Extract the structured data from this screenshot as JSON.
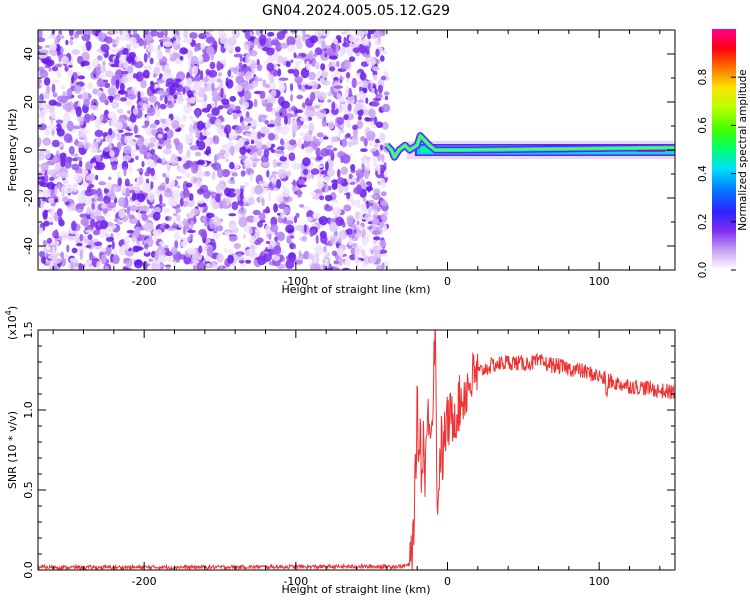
{
  "figure": {
    "title": "GN04.2024.005.05.12.G29"
  },
  "colors": {
    "snr_line": "#ee3333",
    "axis": "#000000",
    "background": "#ffffff",
    "colormap": [
      "#ffffff",
      "#d8b8f6",
      "#9a4cf0",
      "#6a1ff0",
      "#2040ff",
      "#00c8ff",
      "#00ff80",
      "#60ff00",
      "#ffff00",
      "#ff8000",
      "#ff0000",
      "#ff00a0"
    ]
  },
  "chart_data": [
    {
      "type": "heatmap",
      "name": "spectrogram",
      "xlabel": "Height of straight line (km)",
      "ylabel": "Frequency (Hz)",
      "xlim": [
        -270,
        150
      ],
      "ylim": [
        -50,
        50
      ],
      "xticks": [
        -200,
        -100,
        0,
        100
      ],
      "xtick_labels": [
        "-200",
        "-100",
        "0",
        "100"
      ],
      "yticks": [
        -40,
        -20,
        0,
        20,
        40
      ],
      "ytick_labels": [
        "-40",
        "-20",
        "0",
        "20",
        "40"
      ],
      "noise_region_x": [
        -270,
        -40
      ],
      "signal_band_x": [
        -40,
        150
      ],
      "signal_band_center_hz": 0,
      "signal_trace": [
        [
          -40,
          2
        ],
        [
          -37,
          0
        ],
        [
          -35,
          -3
        ],
        [
          -32,
          0
        ],
        [
          -28,
          2
        ],
        [
          -25,
          0
        ],
        [
          -20,
          2
        ],
        [
          -18,
          6
        ],
        [
          -15,
          4
        ],
        [
          -12,
          2
        ],
        [
          -8,
          0
        ],
        [
          10,
          0
        ],
        [
          150,
          1
        ]
      ],
      "colorbar": {
        "label": "Normalized spectral amplitude",
        "range": [
          0,
          1
        ],
        "ticks": [
          0.0,
          0.2,
          0.4,
          0.6,
          0.8
        ],
        "tick_labels": [
          "0.0",
          "0.2",
          "0.4",
          "0.6",
          "0.8"
        ]
      }
    },
    {
      "type": "line",
      "name": "snr",
      "xlabel": "Height of straight line (km)",
      "ylabel": "SNR (10 * v/v)",
      "scale_label": "(x10",
      "scale_exponent": "4",
      "xlim": [
        -270,
        150
      ],
      "ylim": [
        0,
        15000
      ],
      "xticks": [
        -200,
        -100,
        0,
        100
      ],
      "xtick_labels": [
        "-200",
        "-100",
        "0",
        "100"
      ],
      "yticks": [
        0,
        5000,
        10000,
        15000
      ],
      "ytick_labels": [
        "0.0",
        "0.5",
        "1.0",
        "1.5"
      ],
      "series": [
        {
          "x": [
            -270,
            -250,
            -200,
            -150,
            -100,
            -60,
            -30,
            -25,
            -23,
            -21,
            -20,
            -19,
            -18,
            -17,
            -16,
            -15,
            -14,
            -13,
            -12,
            -11,
            -10,
            -9,
            -8,
            -7,
            -6,
            -5,
            -4,
            -3,
            -2,
            0,
            5,
            10,
            15,
            20,
            25,
            30,
            40,
            50,
            60,
            65,
            70,
            80,
            90,
            100,
            105,
            110,
            120,
            130,
            140,
            150
          ],
          "y": [
            180,
            160,
            170,
            180,
            200,
            210,
            220,
            350,
            1500,
            6000,
            10500,
            7000,
            9000,
            5500,
            8500,
            6000,
            8000,
            9000,
            10200,
            9500,
            8800,
            14000,
            15000,
            5000,
            4500,
            7000,
            8000,
            6500,
            8500,
            9200,
            9800,
            10800,
            11800,
            12300,
            12600,
            12800,
            13000,
            12900,
            13000,
            12900,
            12800,
            12600,
            12400,
            12100,
            11900,
            11700,
            11500,
            11400,
            11200,
            11100
          ]
        }
      ]
    }
  ]
}
